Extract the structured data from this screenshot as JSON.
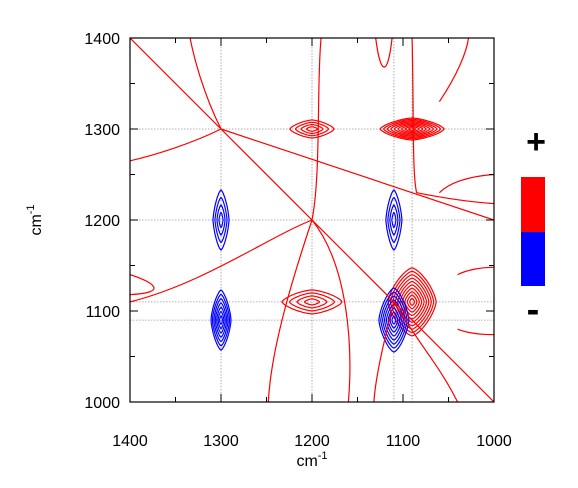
{
  "chart_data": {
    "type": "contour",
    "xlabel": "cm",
    "xlabel_sup": "-1",
    "ylabel": "cm",
    "ylabel_sup": "-1",
    "xlim": [
      1400,
      1000
    ],
    "ylim": [
      1000,
      1400
    ],
    "xticks": [
      "1400",
      "1300",
      "1200",
      "1100",
      "1000"
    ],
    "yticks": [
      "1000",
      "1100",
      "1200",
      "1300",
      "1400"
    ],
    "grid_x": [
      1300,
      1200,
      1110,
      1090
    ],
    "grid_y": [
      1300,
      1200,
      1110,
      1090
    ],
    "colors": {
      "positive": "#ff0000",
      "negative": "#0000ff",
      "grid": "#999999"
    },
    "legend": {
      "plus": "+",
      "minus": "-"
    },
    "peaks": [
      {
        "x": 1200,
        "y": 1300,
        "sign": "positive",
        "rx": 22,
        "ry": 9,
        "levels": 4
      },
      {
        "x": 1090,
        "y": 1300,
        "sign": "positive",
        "rx": 32,
        "ry": 11,
        "levels": 9
      },
      {
        "x": 1200,
        "y": 1110,
        "sign": "positive",
        "rx": 30,
        "ry": 12,
        "levels": 4
      },
      {
        "x": 1090,
        "y": 1110,
        "sign": "positive",
        "rx": 24,
        "ry": 34,
        "levels": 10
      },
      {
        "x": 1300,
        "y": 1200,
        "sign": "negative",
        "rx": 8,
        "ry": 30,
        "levels": 4
      },
      {
        "x": 1110,
        "y": 1200,
        "sign": "negative",
        "rx": 8,
        "ry": 30,
        "levels": 4
      },
      {
        "x": 1300,
        "y": 1090,
        "sign": "negative",
        "rx": 10,
        "ry": 30,
        "levels": 7
      },
      {
        "x": 1110,
        "y": 1090,
        "sign": "negative",
        "rx": 15,
        "ry": 32,
        "levels": 8
      }
    ]
  }
}
